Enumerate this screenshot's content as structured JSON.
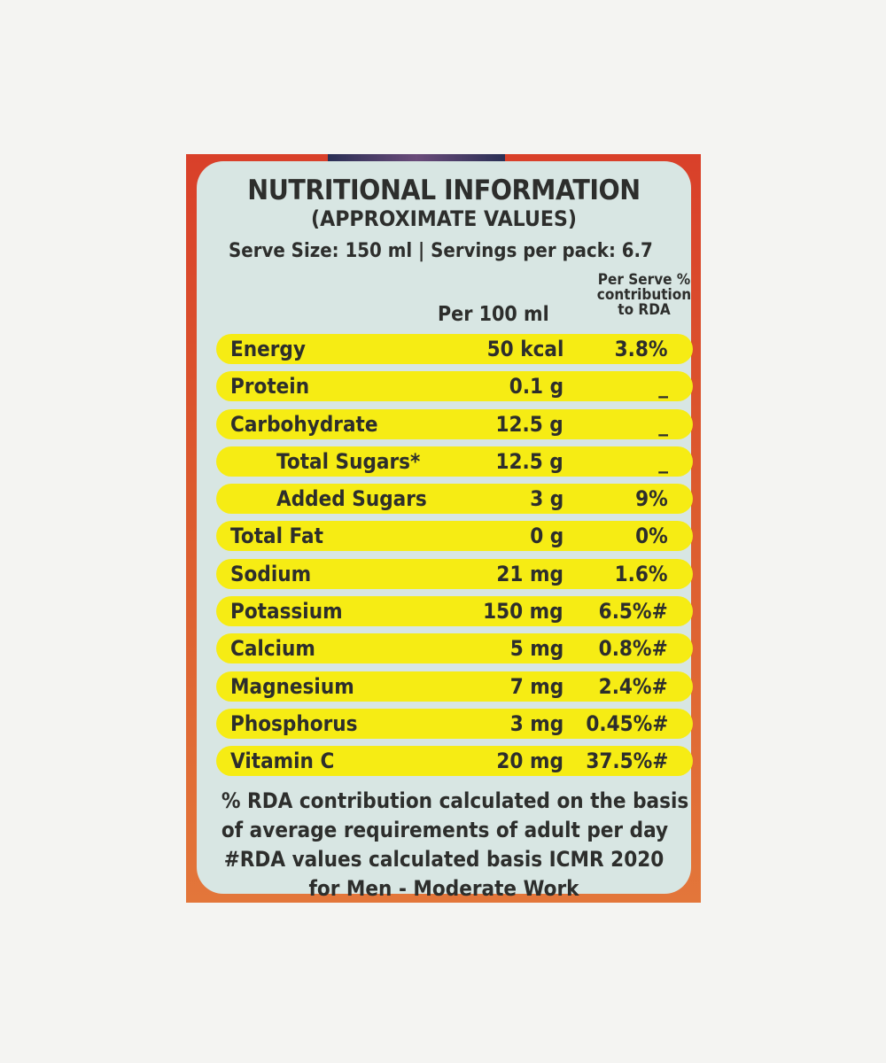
{
  "label": {
    "title": "NUTRITIONAL INFORMATION",
    "subtitle": "(APPROXIMATE VALUES)",
    "serve_info": "Serve Size: 150 ml | Servings per pack: 6.7",
    "col_per100": "Per 100 ml",
    "col_rda_line1": "Per Serve %",
    "col_rda_line2": "contribution",
    "col_rda_line3": "to RDA",
    "rows": [
      {
        "name": "Energy",
        "amount": "50 kcal",
        "rda": "3.8%"
      },
      {
        "name": "Protein",
        "amount": "0.1 g",
        "rda": "_"
      },
      {
        "name": "Carbohydrate",
        "amount": "12.5 g",
        "rda": "_"
      },
      {
        "name": "Total Sugars*",
        "amount": "12.5 g",
        "rda": "_"
      },
      {
        "name": "Added Sugars",
        "amount": "3 g",
        "rda": "9%"
      },
      {
        "name": "Total Fat",
        "amount": "0 g",
        "rda": "0%"
      },
      {
        "name": "Sodium",
        "amount": "21 mg",
        "rda": "1.6%"
      },
      {
        "name": "Potassium",
        "amount": "150 mg",
        "rda": "6.5%#"
      },
      {
        "name": "Calcium",
        "amount": "5 mg",
        "rda": "0.8%#"
      },
      {
        "name": "Magnesium",
        "amount": "7 mg",
        "rda": "2.4%#"
      },
      {
        "name": "Phosphorus",
        "amount": "3 mg",
        "rda": "0.45%#"
      },
      {
        "name": "Vitamin C",
        "amount": "20 mg",
        "rda": "37.5%#"
      }
    ],
    "footnote": [
      "% RDA contribution calculated on the basis",
      "of average requirements of adult per day",
      "#RDA values calculated basis ICMR 2020",
      "for Men - Moderate  Work"
    ]
  },
  "colors": {
    "background": "#f4f4f2",
    "pack_red": "#d9402a",
    "panel": "#d8e6e3",
    "row_highlight": "#f6ec14",
    "text": "#2d2e2c"
  }
}
